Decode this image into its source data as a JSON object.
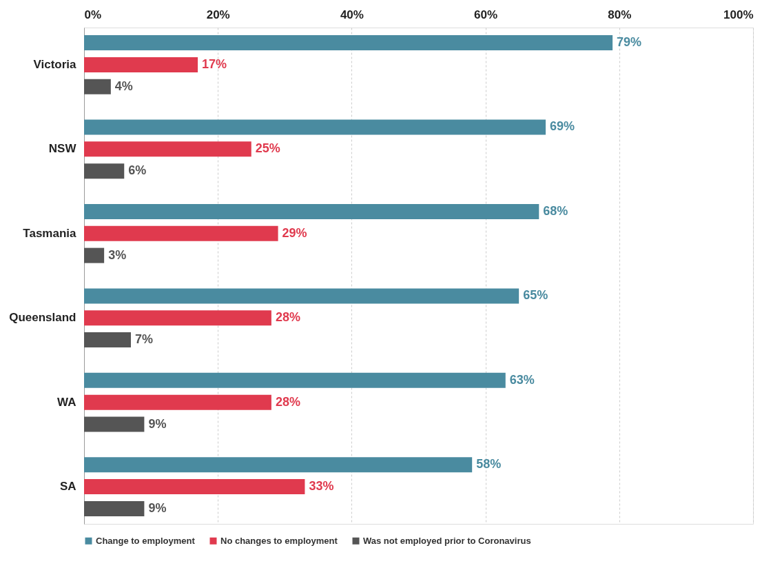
{
  "chart_data": {
    "type": "bar",
    "orientation": "horizontal",
    "categories": [
      "Victoria",
      "NSW",
      "Tasmania",
      "Queensland",
      "WA",
      "SA"
    ],
    "series": [
      {
        "name": "Change to employment",
        "color": "#4a8ba0",
        "values": [
          79,
          69,
          68,
          65,
          63,
          58
        ],
        "value_labels": [
          "79%",
          "69%",
          "68%",
          "65%",
          "63%",
          "58%"
        ]
      },
      {
        "name": "No changes to employment",
        "color": "#e03a4e",
        "values": [
          17,
          25,
          29,
          28,
          28,
          33
        ],
        "value_labels": [
          "17%",
          "25%",
          "29%",
          "28%",
          "28%",
          "33%"
        ]
      },
      {
        "name": "Was not employed prior to Coronavirus",
        "color": "#555555",
        "values": [
          4,
          6,
          3,
          7,
          9,
          9
        ],
        "value_labels": [
          "4%",
          "6%",
          "3%",
          "7%",
          "9%",
          "9%"
        ]
      }
    ],
    "xlim": [
      0,
      100
    ],
    "xticks": [
      {
        "value": 0,
        "label": "0%"
      },
      {
        "value": 20,
        "label": "20%"
      },
      {
        "value": 40,
        "label": "40%"
      },
      {
        "value": 60,
        "label": "60%"
      },
      {
        "value": 80,
        "label": "80%"
      },
      {
        "value": 100,
        "label": "100%"
      }
    ],
    "grid": "x",
    "legend": "bottom"
  }
}
